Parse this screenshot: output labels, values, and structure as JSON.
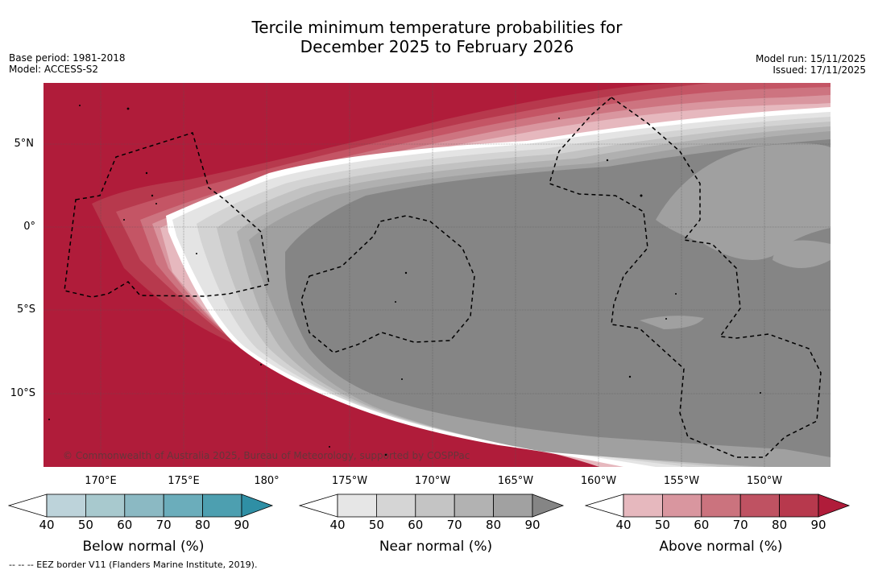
{
  "title_line1": "Tercile minimum temperature probabilities for",
  "title_line2": "December 2025 to February 2026",
  "base_period": "Base period: 1981-2018",
  "model": "Model: ACCESS-S2",
  "model_run": "Model run: 15/11/2025",
  "issued": "Issued: 17/11/2025",
  "lat_labels": [
    "5°N",
    "0°",
    "5°S",
    "10°S"
  ],
  "lon_labels": [
    "170°E",
    "175°E",
    "180°",
    "175°W",
    "170°W",
    "165°W",
    "160°W",
    "155°W",
    "150°W"
  ],
  "copyright": "© Commonwealth of Australia 2025, Bureau of Meteorology, supported by COSPPac",
  "colorbars": {
    "below": {
      "label": "Below normal (%)",
      "ticks": [
        "40",
        "50",
        "60",
        "70",
        "80",
        "90"
      ],
      "colors": [
        "#ffffff",
        "#bdd3da",
        "#a8c9ce",
        "#8bb9c3",
        "#6badbb",
        "#4d9fb0",
        "#2f8fa5"
      ]
    },
    "near": {
      "label": "Near normal (%)",
      "ticks": [
        "40",
        "50",
        "60",
        "70",
        "80",
        "90"
      ],
      "colors": [
        "#ffffff",
        "#e6e6e6",
        "#d5d5d5",
        "#c4c4c4",
        "#b2b2b2",
        "#a1a1a1",
        "#858585"
      ]
    },
    "above": {
      "label": "Above normal (%)",
      "ticks": [
        "40",
        "50",
        "60",
        "70",
        "80",
        "90"
      ],
      "colors": [
        "#ffffff",
        "#e6b8be",
        "#d9969f",
        "#cb737e",
        "#bf5262",
        "#b7394d",
        "#b01c3a"
      ]
    }
  },
  "footnote": "--  --  -- EEZ border V11 (Flanders Marine Institute, 2019).",
  "map_colors": {
    "above90": "#b01c3a",
    "above80": "#b7394d",
    "above70": "#c45565",
    "above60": "#cd7480",
    "above50": "#d9969f",
    "above40": "#e6b8be",
    "near40": "#e4e4e4",
    "near50": "#d3d3d3",
    "near60": "#c2c2c2",
    "near70": "#b0b0b0",
    "near80": "#a0a0a0",
    "near90": "#858585"
  }
}
